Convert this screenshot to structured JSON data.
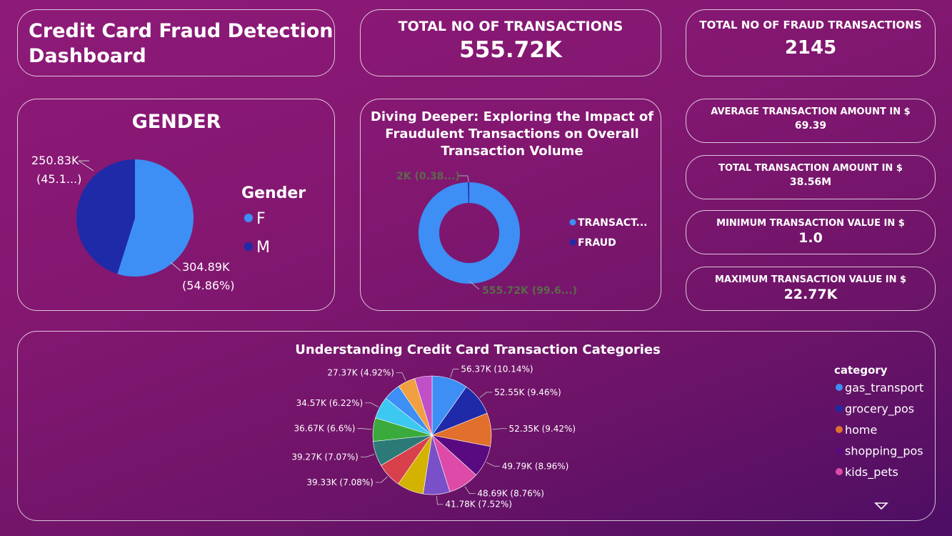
{
  "dashboard": {
    "title_line1": "Credit Card Fraud Detection",
    "title_line2": "Dashboard"
  },
  "kpis": {
    "total_transactions": {
      "label": "TOTAL NO OF TRANSACTIONS",
      "value": "555.72K"
    },
    "fraud_transactions": {
      "label": "TOTAL NO OF FRAUD TRANSACTIONS",
      "value": "2145"
    },
    "avg_amount": {
      "label": "AVERAGE TRANSACTION AMOUNT IN $",
      "value": "69.39"
    },
    "total_amount": {
      "label": "TOTAL TRANSACTION AMOUNT IN $",
      "value": "38.56M"
    },
    "min_value": {
      "label": "MINIMUM TRANSACTION VALUE IN $",
      "value": "1.0"
    },
    "max_value": {
      "label": "MAXIMUM TRANSACTION VALUE IN $",
      "value": "22.77K"
    }
  },
  "colors": {
    "light_blue": "#3d8ef5",
    "dark_blue": "#1f2aa8",
    "label_gray": "#5a6a4a"
  },
  "chart_data": [
    {
      "type": "pie",
      "title": "GENDER",
      "legend_title": "Gender",
      "legend_position": "right",
      "slices": [
        {
          "name": "F",
          "value": 304.89,
          "label_line1": "304.89K",
          "label_line2": "(54.86%)",
          "color": "#3d8ef5"
        },
        {
          "name": "M",
          "value": 250.83,
          "label_line1": "250.83K",
          "label_line2": "(45.1...)",
          "color": "#1f2aa8"
        }
      ]
    },
    {
      "type": "pie",
      "variant": "donut",
      "title_lines": [
        "Diving Deeper: Exploring the Impact of",
        "Fraudulent Transactions on Overall",
        "Transaction Volume"
      ],
      "legend_position": "right",
      "slices": [
        {
          "name": "TRANSACT...",
          "value": 555.72,
          "label": "555.72K (99.6...)",
          "color": "#3d8ef5"
        },
        {
          "name": "FRAUD",
          "value": 2.145,
          "label": "2K (0.38...)",
          "color": "#1f2aa8"
        }
      ]
    },
    {
      "type": "pie",
      "title": "Understanding Credit Card Transaction Categories",
      "legend_title": "category",
      "legend_position": "right",
      "legend_visible": [
        "gas_transport",
        "grocery_pos",
        "home",
        "shopping_pos",
        "kids_pets"
      ],
      "slices": [
        {
          "name": "gas_transport",
          "value": 56.37,
          "label": "56.37K (10.14%)",
          "color": "#3d8ef5"
        },
        {
          "name": "grocery_pos",
          "value": 52.55,
          "label": "52.55K (9.46%)",
          "color": "#1f2aa8"
        },
        {
          "name": "home",
          "value": 52.35,
          "label": "52.35K (9.42%)",
          "color": "#e0702c"
        },
        {
          "name": "shopping_pos",
          "value": 49.79,
          "label": "49.79K (8.96%)",
          "color": "#5a0a80"
        },
        {
          "name": "kids_pets",
          "value": 48.69,
          "label": "48.69K (8.76%)",
          "color": "#de4aa8"
        },
        {
          "value": 41.78,
          "label": "41.78K (7.52%)",
          "color": "#7a50c8"
        },
        {
          "value": 41.78,
          "label": "",
          "color": "#d4b200"
        },
        {
          "value": 39.33,
          "label": "39.33K (7.08%)",
          "color": "#d8404c"
        },
        {
          "value": 39.27,
          "label": "39.27K (7.07%)",
          "color": "#2c7a78"
        },
        {
          "value": 36.67,
          "label": "36.67K (6.6%)",
          "color": "#3aaa3c"
        },
        {
          "value": 34.57,
          "label": "34.57K (6.22%)",
          "color": "#3cc8f0"
        },
        {
          "value": 27.37,
          "label": "",
          "color": "#3d8ef5"
        },
        {
          "value": 27.37,
          "label": "27.37K (4.92%)",
          "color": "#f0a040"
        },
        {
          "value": 27.37,
          "label": "",
          "color": "#c050c8"
        }
      ]
    }
  ]
}
